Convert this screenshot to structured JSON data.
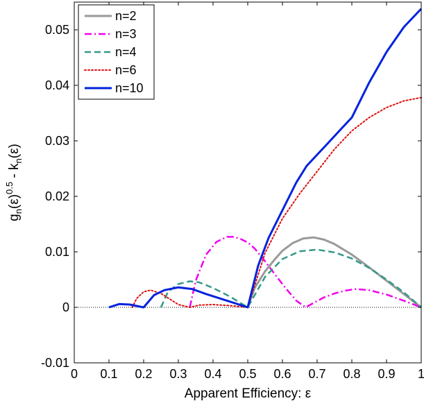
{
  "chart_data": {
    "type": "line",
    "title": "",
    "xlabel": "Apparent Efficiency: ε",
    "ylabel": {
      "parts": [
        {
          "text": "g",
          "shift": "base"
        },
        {
          "text": "n",
          "shift": "sub"
        },
        {
          "text": "(ε)",
          "shift": "base"
        },
        {
          "text": "0.5",
          "shift": "sup"
        },
        {
          "text": " - k",
          "shift": "base"
        },
        {
          "text": "n",
          "shift": "sub"
        },
        {
          "text": "(ε)",
          "shift": "base"
        }
      ]
    },
    "xlim": [
      0,
      1
    ],
    "ylim": [
      -0.01,
      0.055
    ],
    "x_ticks": [
      0,
      0.1,
      0.2,
      0.3,
      0.4,
      0.5,
      0.6,
      0.7,
      0.8,
      0.9,
      1
    ],
    "x_tick_labels": [
      "0",
      "0.1",
      "0.2",
      "0.3",
      "0.4",
      "0.5",
      "0.6",
      "0.7",
      "0.8",
      "0.9",
      "1"
    ],
    "y_ticks": [
      -0.01,
      0,
      0.01,
      0.02,
      0.03,
      0.04,
      0.05
    ],
    "y_tick_labels": [
      "-0.01",
      "0",
      "0.01",
      "0.02",
      "0.03",
      "0.04",
      "0.05"
    ],
    "grid": false,
    "legend_position": "top-left",
    "zero_line": {
      "y": 0,
      "style": "dotted"
    },
    "series": [
      {
        "name": "n=2",
        "color": "#999999",
        "dash": "solid",
        "width": 3,
        "x": [
          0.5,
          0.52,
          0.55,
          0.58,
          0.6,
          0.63,
          0.66,
          0.69,
          0.72,
          0.75,
          0.8,
          0.85,
          0.9,
          0.95,
          1.0
        ],
        "y": [
          0,
          0.0035,
          0.0065,
          0.0088,
          0.0102,
          0.0116,
          0.0124,
          0.0126,
          0.0122,
          0.0114,
          0.0095,
          0.0072,
          0.0048,
          0.0024,
          0.0
        ]
      },
      {
        "name": "n=3",
        "color": "#ee00ee",
        "dash": "dashdot",
        "width": 2.5,
        "x": [
          0.333,
          0.35,
          0.38,
          0.41,
          0.44,
          0.46,
          0.48,
          0.5,
          0.52,
          0.55,
          0.58,
          0.61,
          0.64,
          0.667,
          0.69,
          0.72,
          0.75,
          0.78,
          0.81,
          0.85,
          0.9,
          0.95,
          1.0
        ],
        "y": [
          0,
          0.0048,
          0.0095,
          0.0118,
          0.0127,
          0.0127,
          0.0123,
          0.0117,
          0.0106,
          0.0083,
          0.0058,
          0.0034,
          0.0012,
          0.0,
          0.0008,
          0.0018,
          0.0025,
          0.003,
          0.0033,
          0.0031,
          0.0023,
          0.0012,
          0.0
        ]
      },
      {
        "name": "n=4",
        "color": "#339988",
        "dash": "dashed",
        "width": 2.5,
        "x": [
          0.25,
          0.27,
          0.3,
          0.333,
          0.36,
          0.4,
          0.45,
          0.5,
          0.55,
          0.6,
          0.65,
          0.7,
          0.75,
          0.8,
          0.85,
          0.9,
          0.95,
          1.0
        ],
        "y": [
          0,
          0.0028,
          0.0042,
          0.0047,
          0.0045,
          0.0035,
          0.0019,
          0,
          0.0055,
          0.0087,
          0.0101,
          0.0104,
          0.0099,
          0.0088,
          0.0071,
          0.005,
          0.0027,
          0.0
        ]
      },
      {
        "name": "n=6",
        "color": "#dd1111",
        "dash": "dotted",
        "width": 2,
        "x": [
          0.167,
          0.18,
          0.2,
          0.22,
          0.25,
          0.28,
          0.3,
          0.333,
          0.36,
          0.4,
          0.45,
          0.5,
          0.55,
          0.6,
          0.65,
          0.7,
          0.75,
          0.8,
          0.85,
          0.9,
          0.95,
          1.0
        ],
        "y": [
          0,
          0.0016,
          0.0028,
          0.0031,
          0.0025,
          0.0013,
          0.0005,
          0,
          0.0004,
          0.0005,
          0.0003,
          0,
          0.0098,
          0.016,
          0.0205,
          0.0245,
          0.0285,
          0.0318,
          0.0342,
          0.036,
          0.0372,
          0.0378
        ]
      },
      {
        "name": "n=10",
        "color": "#0022dd",
        "dash": "solid",
        "width": 3,
        "x": [
          0.1,
          0.13,
          0.16,
          0.2,
          0.23,
          0.26,
          0.3,
          0.34,
          0.38,
          0.42,
          0.46,
          0.5,
          0.53,
          0.56,
          0.6,
          0.64,
          0.67,
          0.7,
          0.73,
          0.77,
          0.8,
          0.85,
          0.9,
          0.95,
          1.0
        ],
        "y": [
          0,
          0.0006,
          0.0005,
          0,
          0.0022,
          0.0031,
          0.0036,
          0.0033,
          0.0024,
          0.0016,
          0.0008,
          0,
          0.0075,
          0.0125,
          0.0175,
          0.0225,
          0.0255,
          0.0275,
          0.0295,
          0.0322,
          0.0342,
          0.0405,
          0.046,
          0.0505,
          0.0538
        ]
      }
    ]
  }
}
